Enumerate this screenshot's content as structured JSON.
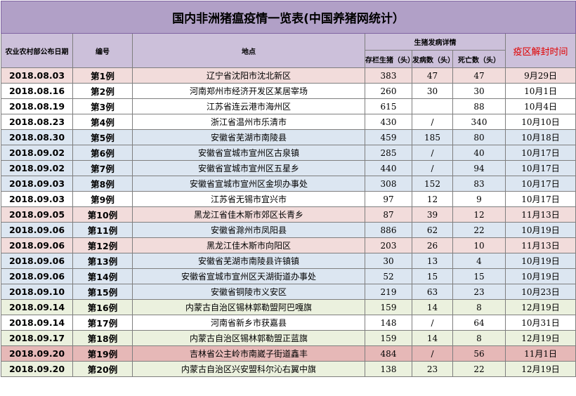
{
  "title": "国内非洲猪瘟疫情一览表(中国养猪网统计）",
  "headers": {
    "date": "农业农村部公布日期",
    "number": "编号",
    "location": "地点",
    "detail_group": "生猪发病详情",
    "stock": "存栏生猪（头）",
    "sick": "发病数（头）",
    "dead": "死亡数（头）",
    "unlock": "疫区解封时间"
  },
  "rows": [
    {
      "date": "2018.08.03",
      "number": "第1例",
      "location": "辽宁省沈阳市沈北新区",
      "stock": "383",
      "sick": "47",
      "dead": "47",
      "unlock": "9月29日",
      "tone": "pink"
    },
    {
      "date": "2018.08.16",
      "number": "第2例",
      "location": "河南郑州市经济开发区某居宰场",
      "stock": "260",
      "sick": "30",
      "dead": "30",
      "unlock": "10月1日",
      "tone": "white"
    },
    {
      "date": "2018.08.19",
      "number": "第3例",
      "location": "江苏省连云港市海州区",
      "stock": "615",
      "sick": "",
      "dead": "88",
      "unlock": "10月4日",
      "tone": "white"
    },
    {
      "date": "2018.08.23",
      "number": "第4例",
      "location": "浙江省温州市乐清市",
      "stock": "430",
      "sick": "/",
      "dead": "340",
      "unlock": "10月10日",
      "tone": "white"
    },
    {
      "date": "2018.08.30",
      "number": "第5例",
      "location": "安徽省芜湖市南陵县",
      "stock": "459",
      "sick": "185",
      "dead": "80",
      "unlock": "10月18日",
      "tone": "blue"
    },
    {
      "date": "2018.09.02",
      "number": "第6例",
      "location": "安徽省宣城市宣州区古泉镇",
      "stock": "285",
      "sick": "/",
      "dead": "40",
      "unlock": "10月17日",
      "tone": "blue"
    },
    {
      "date": "2018.09.02",
      "number": "第7例",
      "location": "安徽省宣城市宣州区五星乡",
      "stock": "440",
      "sick": "/",
      "dead": "94",
      "unlock": "10月17日",
      "tone": "blue"
    },
    {
      "date": "2018.09.03",
      "number": "第8例",
      "location": "安徽省宣城市宣州区金坝办事处",
      "stock": "308",
      "sick": "152",
      "dead": "83",
      "unlock": "10月17日",
      "tone": "blue"
    },
    {
      "date": "2018.09.03",
      "number": "第9例",
      "location": "江苏省无锡市宜兴市",
      "stock": "97",
      "sick": "12",
      "dead": "9",
      "unlock": "10月17日",
      "tone": "white"
    },
    {
      "date": "2018.09.05",
      "number": "第10例",
      "location": "黑龙江省佳木斯市郊区长青乡",
      "stock": "87",
      "sick": "39",
      "dead": "12",
      "unlock": "11月13日",
      "tone": "pink"
    },
    {
      "date": "2018.09.06",
      "number": "第11例",
      "location": "安徽省滁州市凤阳县",
      "stock": "886",
      "sick": "62",
      "dead": "22",
      "unlock": "10月19日",
      "tone": "blue"
    },
    {
      "date": "2018.09.06",
      "number": "第12例",
      "location": "黑龙江佳木斯市向阳区",
      "stock": "203",
      "sick": "26",
      "dead": "10",
      "unlock": "11月13日",
      "tone": "pink"
    },
    {
      "date": "2018.09.06",
      "number": "第13例",
      "location": "安徽省芜湖市南陵县许镇镇",
      "stock": "30",
      "sick": "13",
      "dead": "4",
      "unlock": "10月19日",
      "tone": "blue"
    },
    {
      "date": "2018.09.06",
      "number": "第14例",
      "location": "安徽省宣城市宣州区天湖街道办事处",
      "stock": "52",
      "sick": "15",
      "dead": "15",
      "unlock": "10月19日",
      "tone": "blue"
    },
    {
      "date": "2018.09.10",
      "number": "第15例",
      "location": "安徽省铜陵市义安区",
      "stock": "219",
      "sick": "63",
      "dead": "23",
      "unlock": "10月23日",
      "tone": "blue"
    },
    {
      "date": "2018.09.14",
      "number": "第16例",
      "location": "内蒙古自治区锡林郭勒盟阿巴嘎旗",
      "stock": "159",
      "sick": "14",
      "dead": "8",
      "unlock": "12月19日",
      "tone": "green"
    },
    {
      "date": "2018.09.14",
      "number": "第17例",
      "location": "河南省新乡市获嘉县",
      "stock": "148",
      "sick": "/",
      "dead": "64",
      "unlock": "10月31日",
      "tone": "white"
    },
    {
      "date": "2018.09.17",
      "number": "第18例",
      "location": "内蒙古自治区锡林郭勒盟正蓝旗",
      "stock": "159",
      "sick": "14",
      "dead": "8",
      "unlock": "12月19日",
      "tone": "green"
    },
    {
      "date": "2018.09.20",
      "number": "第19例",
      "location": "吉林省公主岭市南崴子街道鑫丰",
      "stock": "484",
      "sick": "/",
      "dead": "56",
      "unlock": "11月1日",
      "tone": "red"
    },
    {
      "date": "2018.09.20",
      "number": "第20例",
      "location": "内蒙古自治区兴安盟科尔沁右翼中旗",
      "stock": "138",
      "sick": "23",
      "dead": "22",
      "unlock": "12月19日",
      "tone": "green"
    }
  ]
}
